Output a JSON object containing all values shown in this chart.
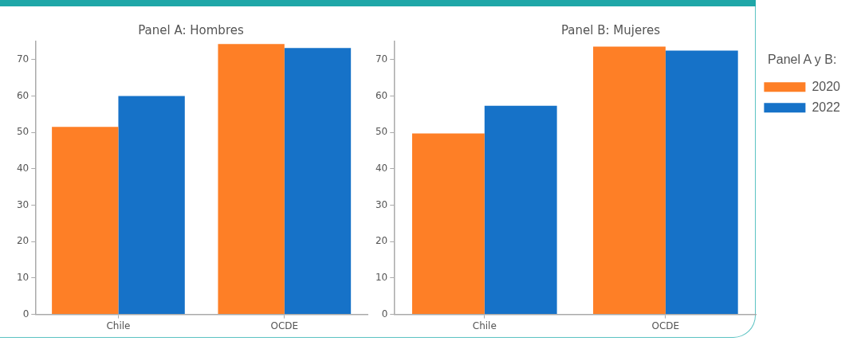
{
  "chart_data": [
    {
      "type": "bar",
      "title": "Panel A: Hombres",
      "categories": [
        "Chile",
        "OCDE"
      ],
      "series": [
        {
          "color": "#fe7f26",
          "values": [
            51.5,
            74.3
          ]
        },
        {
          "color": "#1672c8",
          "values": [
            60.0,
            73.2
          ]
        }
      ],
      "ylim": [
        0,
        75
      ],
      "yticks": [
        0,
        10,
        20,
        30,
        40,
        50,
        60,
        70
      ],
      "grid": false
    },
    {
      "type": "bar",
      "title": "Panel B: Mujeres",
      "categories": [
        "Chile",
        "OCDE"
      ],
      "legend_title": "Panel A y B:",
      "legend": "right",
      "series": [
        {
          "name": "2020",
          "color": "#fe7f26",
          "values": [
            49.7,
            73.6
          ]
        },
        {
          "name": "2022",
          "color": "#1672c8",
          "values": [
            57.3,
            72.5
          ]
        }
      ],
      "ylim": [
        0,
        75
      ],
      "yticks": [
        0,
        10,
        20,
        30,
        40,
        50,
        60,
        70
      ],
      "grid": false
    }
  ]
}
